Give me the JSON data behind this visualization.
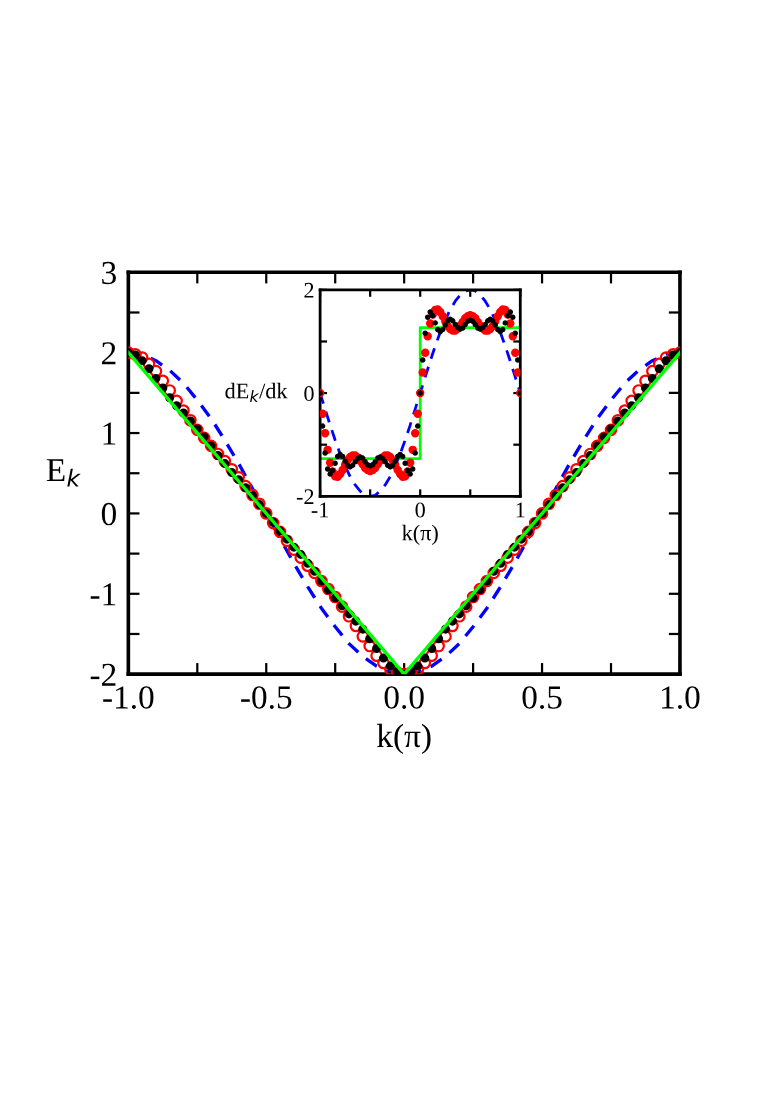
{
  "chart_data": [
    {
      "type": "line",
      "xlabel": "k(π)",
      "ylabel": "E$_{k}$",
      "xlim": [
        -1,
        1
      ],
      "ylim": [
        -2,
        3
      ],
      "xticks": [
        {
          "value": -1,
          "label": "-1.0"
        },
        {
          "value": -0.75,
          "label": null
        },
        {
          "value": -0.5,
          "label": "-0.5"
        },
        {
          "value": -0.25,
          "label": null
        },
        {
          "value": 0,
          "label": "0.0"
        },
        {
          "value": 0.25,
          "label": null
        },
        {
          "value": 0.5,
          "label": "0.5"
        },
        {
          "value": 0.75,
          "label": null
        },
        {
          "value": 1,
          "label": "1.0"
        }
      ],
      "yticks": [
        -2,
        {
          "value": -1.5,
          "label": null
        },
        -1,
        {
          "value": -0.5,
          "label": null
        },
        0,
        {
          "value": 0.5,
          "label": null
        },
        1,
        {
          "value": 1.5,
          "label": null
        },
        2,
        {
          "value": 2.5,
          "label": null
        },
        3
      ],
      "grid": false,
      "legend": false,
      "x": [
        -1,
        -0.975,
        -0.95,
        -0.925,
        -0.9,
        -0.875,
        -0.85,
        -0.825,
        -0.8,
        -0.775,
        -0.75,
        -0.725,
        -0.7,
        -0.675,
        -0.65,
        -0.625,
        -0.6,
        -0.575,
        -0.55,
        -0.525,
        -0.5,
        -0.475,
        -0.45,
        -0.425,
        -0.4,
        -0.375,
        -0.35,
        -0.325,
        -0.3,
        -0.275,
        -0.25,
        -0.225,
        -0.2,
        -0.175,
        -0.15,
        -0.125,
        -0.1,
        -0.075,
        -0.05,
        -0.025,
        0,
        0.025,
        0.05,
        0.075,
        0.1,
        0.125,
        0.15,
        0.175,
        0.2,
        0.225,
        0.25,
        0.275,
        0.3,
        0.325,
        0.35,
        0.375,
        0.4,
        0.425,
        0.45,
        0.475,
        0.5,
        0.525,
        0.55,
        0.575,
        0.6,
        0.625,
        0.65,
        0.675,
        0.7,
        0.725,
        0.75,
        0.775,
        0.8,
        0.825,
        0.85,
        0.875,
        0.9,
        0.925,
        0.95,
        0.975,
        1
      ],
      "series": [
        {
          "color": "#0000ff",
          "line_style": "dashed",
          "marker": "none",
          "x": [
            -1,
            -0.95,
            -0.9,
            -0.85,
            -0.8,
            -0.75,
            -0.7,
            -0.65,
            -0.6,
            -0.55,
            -0.5,
            -0.45,
            -0.4,
            -0.35,
            -0.3,
            -0.25,
            -0.2,
            -0.15,
            -0.1,
            -0.05,
            0,
            0.05,
            0.1,
            0.15,
            0.2,
            0.25,
            0.3,
            0.35,
            0.4,
            0.45,
            0.5,
            0.55,
            0.6,
            0.65,
            0.7,
            0.75,
            0.8,
            0.85,
            0.9,
            0.95,
            1
          ],
          "values": [
            2,
            1.98,
            1.9,
            1.78,
            1.62,
            1.41,
            1.18,
            0.91,
            0.62,
            0.31,
            0,
            -0.31,
            -0.62,
            -0.91,
            -1.18,
            -1.41,
            -1.62,
            -1.78,
            -1.9,
            -1.98,
            -2,
            -1.98,
            -1.9,
            -1.78,
            -1.62,
            -1.41,
            -1.18,
            -0.91,
            -0.62,
            -0.31,
            0,
            0.31,
            0.62,
            0.91,
            1.18,
            1.41,
            1.62,
            1.78,
            1.9,
            1.98,
            2
          ]
        },
        {
          "color": "#00ff00",
          "line_style": "solid",
          "marker": "none",
          "x": [
            -1,
            0,
            1
          ],
          "values": [
            2,
            -2,
            2
          ]
        },
        {
          "type": "scatter",
          "color": "#ff0000",
          "marker": "circle",
          "values": [
            2,
            1.98,
            1.94,
            1.86,
            1.77,
            1.65,
            1.53,
            1.4,
            1.28,
            1.16,
            1.04,
            0.94,
            0.84,
            0.74,
            0.65,
            0.55,
            0.45,
            0.34,
            0.23,
            0.12,
            0,
            -0.12,
            -0.23,
            -0.34,
            -0.45,
            -0.55,
            -0.65,
            -0.74,
            -0.84,
            -0.94,
            -1.04,
            -1.16,
            -1.28,
            -1.4,
            -1.53,
            -1.65,
            -1.77,
            -1.86,
            -1.94,
            -1.98,
            -2,
            -1.98,
            -1.94,
            -1.86,
            -1.77,
            -1.65,
            -1.53,
            -1.4,
            -1.28,
            -1.16,
            -1.04,
            -0.94,
            -0.84,
            -0.74,
            -0.65,
            -0.55,
            -0.45,
            -0.34,
            -0.23,
            -0.12,
            0,
            0.12,
            0.23,
            0.34,
            0.45,
            0.55,
            0.65,
            0.74,
            0.84,
            0.94,
            1.04,
            1.16,
            1.28,
            1.4,
            1.53,
            1.65,
            1.77,
            1.86,
            1.94,
            1.98,
            2
          ]
        },
        {
          "type": "scatter",
          "color": "#000000",
          "marker": "circle",
          "values": [
            2,
            1.97,
            1.9,
            1.8,
            1.68,
            1.56,
            1.44,
            1.34,
            1.25,
            1.15,
            1.05,
            0.95,
            0.84,
            0.72,
            0.62,
            0.51,
            0.42,
            0.32,
            0.22,
            0.11,
            0,
            -0.11,
            -0.22,
            -0.32,
            -0.42,
            -0.51,
            -0.62,
            -0.72,
            -0.84,
            -0.95,
            -1.05,
            -1.15,
            -1.25,
            -1.34,
            -1.44,
            -1.56,
            -1.68,
            -1.8,
            -1.9,
            -1.97,
            -2,
            -1.97,
            -1.9,
            -1.8,
            -1.68,
            -1.56,
            -1.44,
            -1.34,
            -1.25,
            -1.15,
            -1.05,
            -0.95,
            -0.84,
            -0.72,
            -0.62,
            -0.51,
            -0.42,
            -0.32,
            -0.22,
            -0.11,
            0,
            0.11,
            0.22,
            0.32,
            0.42,
            0.51,
            0.62,
            0.72,
            0.84,
            0.95,
            1.05,
            1.15,
            1.25,
            1.34,
            1.44,
            1.56,
            1.68,
            1.8,
            1.9,
            1.97,
            2
          ]
        }
      ]
    },
    {
      "type": "line",
      "xlabel": "k(π)",
      "ylabel": "dE$_{k}$/dk",
      "xlim": [
        -1,
        1
      ],
      "ylim": [
        -2,
        2
      ],
      "xticks": [
        -1,
        {
          "value": -0.5,
          "label": null
        },
        0,
        {
          "value": 0.5,
          "label": null
        },
        1
      ],
      "yticks": [
        -2,
        {
          "value": -1,
          "label": null
        },
        0,
        {
          "value": 1,
          "label": null
        },
        2
      ],
      "grid": false,
      "legend": false,
      "x": [
        -1,
        -0.975,
        -0.95,
        -0.925,
        -0.9,
        -0.875,
        -0.85,
        -0.825,
        -0.8,
        -0.775,
        -0.75,
        -0.725,
        -0.7,
        -0.675,
        -0.65,
        -0.625,
        -0.6,
        -0.575,
        -0.55,
        -0.525,
        -0.5,
        -0.475,
        -0.45,
        -0.425,
        -0.4,
        -0.375,
        -0.35,
        -0.325,
        -0.3,
        -0.275,
        -0.25,
        -0.225,
        -0.2,
        -0.175,
        -0.15,
        -0.125,
        -0.1,
        -0.075,
        -0.05,
        -0.025,
        0,
        0.025,
        0.05,
        0.075,
        0.1,
        0.125,
        0.15,
        0.175,
        0.2,
        0.225,
        0.25,
        0.275,
        0.3,
        0.325,
        0.35,
        0.375,
        0.4,
        0.425,
        0.45,
        0.475,
        0.5,
        0.525,
        0.55,
        0.575,
        0.6,
        0.625,
        0.65,
        0.675,
        0.7,
        0.725,
        0.75,
        0.775,
        0.8,
        0.825,
        0.85,
        0.875,
        0.9,
        0.925,
        0.95,
        0.975,
        1
      ],
      "series": [
        {
          "color": "#0000ff",
          "line_style": "dashed",
          "marker": "none",
          "x": [
            -1,
            -0.95,
            -0.9,
            -0.85,
            -0.8,
            -0.75,
            -0.7,
            -0.65,
            -0.6,
            -0.55,
            -0.5,
            -0.45,
            -0.4,
            -0.35,
            -0.3,
            -0.25,
            -0.2,
            -0.15,
            -0.1,
            -0.05,
            0,
            0.05,
            0.1,
            0.15,
            0.2,
            0.25,
            0.3,
            0.35,
            0.4,
            0.45,
            0.5,
            0.55,
            0.6,
            0.65,
            0.7,
            0.75,
            0.8,
            0.85,
            0.9,
            0.95,
            1
          ],
          "values": [
            0,
            -0.31,
            -0.62,
            -0.91,
            -1.18,
            -1.41,
            -1.62,
            -1.78,
            -1.9,
            -1.98,
            -2,
            -1.98,
            -1.9,
            -1.78,
            -1.62,
            -1.41,
            -1.18,
            -0.91,
            -0.62,
            -0.31,
            0,
            0.31,
            0.62,
            0.91,
            1.18,
            1.41,
            1.62,
            1.78,
            1.9,
            1.98,
            2,
            1.98,
            1.9,
            1.78,
            1.62,
            1.41,
            1.18,
            0.91,
            0.62,
            0.31,
            0
          ]
        },
        {
          "color": "#00ff00",
          "line_style": "solid",
          "marker": "none",
          "x": [
            -1,
            0,
            0,
            1
          ],
          "values": [
            -1.27,
            -1.27,
            1.27,
            1.27
          ]
        },
        {
          "type": "scatter",
          "color": "#ff0000",
          "marker": "circle",
          "values": [
            0,
            -0.4,
            -0.78,
            -1.1,
            -1.35,
            -1.52,
            -1.61,
            -1.62,
            -1.57,
            -1.49,
            -1.39,
            -1.3,
            -1.24,
            -1.21,
            -1.21,
            -1.25,
            -1.31,
            -1.38,
            -1.45,
            -1.49,
            -1.51,
            -1.49,
            -1.45,
            -1.38,
            -1.31,
            -1.25,
            -1.21,
            -1.21,
            -1.24,
            -1.3,
            -1.39,
            -1.49,
            -1.57,
            -1.62,
            -1.61,
            -1.52,
            -1.35,
            -1.1,
            -0.78,
            -0.4,
            0,
            0.4,
            0.78,
            1.1,
            1.35,
            1.52,
            1.61,
            1.62,
            1.57,
            1.49,
            1.39,
            1.3,
            1.24,
            1.21,
            1.21,
            1.25,
            1.31,
            1.38,
            1.45,
            1.49,
            1.51,
            1.49,
            1.45,
            1.38,
            1.31,
            1.25,
            1.21,
            1.21,
            1.24,
            1.3,
            1.39,
            1.49,
            1.57,
            1.62,
            1.61,
            1.52,
            1.35,
            1.1,
            0.78,
            0.4,
            0
          ]
        },
        {
          "type": "scatter",
          "color": "#000000",
          "marker": "circle",
          "values": [
            0,
            -0.64,
            -1.16,
            -1.47,
            -1.57,
            -1.5,
            -1.36,
            -1.23,
            -1.19,
            -1.23,
            -1.32,
            -1.4,
            -1.43,
            -1.4,
            -1.33,
            -1.27,
            -1.24,
            -1.26,
            -1.33,
            -1.39,
            -1.41,
            -1.39,
            -1.33,
            -1.26,
            -1.24,
            -1.27,
            -1.33,
            -1.4,
            -1.43,
            -1.4,
            -1.32,
            -1.23,
            -1.19,
            -1.23,
            -1.36,
            -1.5,
            -1.57,
            -1.47,
            -1.16,
            -0.64,
            0,
            0.64,
            1.16,
            1.47,
            1.57,
            1.5,
            1.36,
            1.23,
            1.19,
            1.23,
            1.32,
            1.4,
            1.43,
            1.4,
            1.33,
            1.27,
            1.24,
            1.26,
            1.33,
            1.39,
            1.41,
            1.39,
            1.33,
            1.26,
            1.24,
            1.27,
            1.33,
            1.4,
            1.43,
            1.4,
            1.32,
            1.23,
            1.19,
            1.23,
            1.36,
            1.5,
            1.57,
            1.47,
            1.16,
            0.64,
            0
          ]
        }
      ]
    }
  ]
}
